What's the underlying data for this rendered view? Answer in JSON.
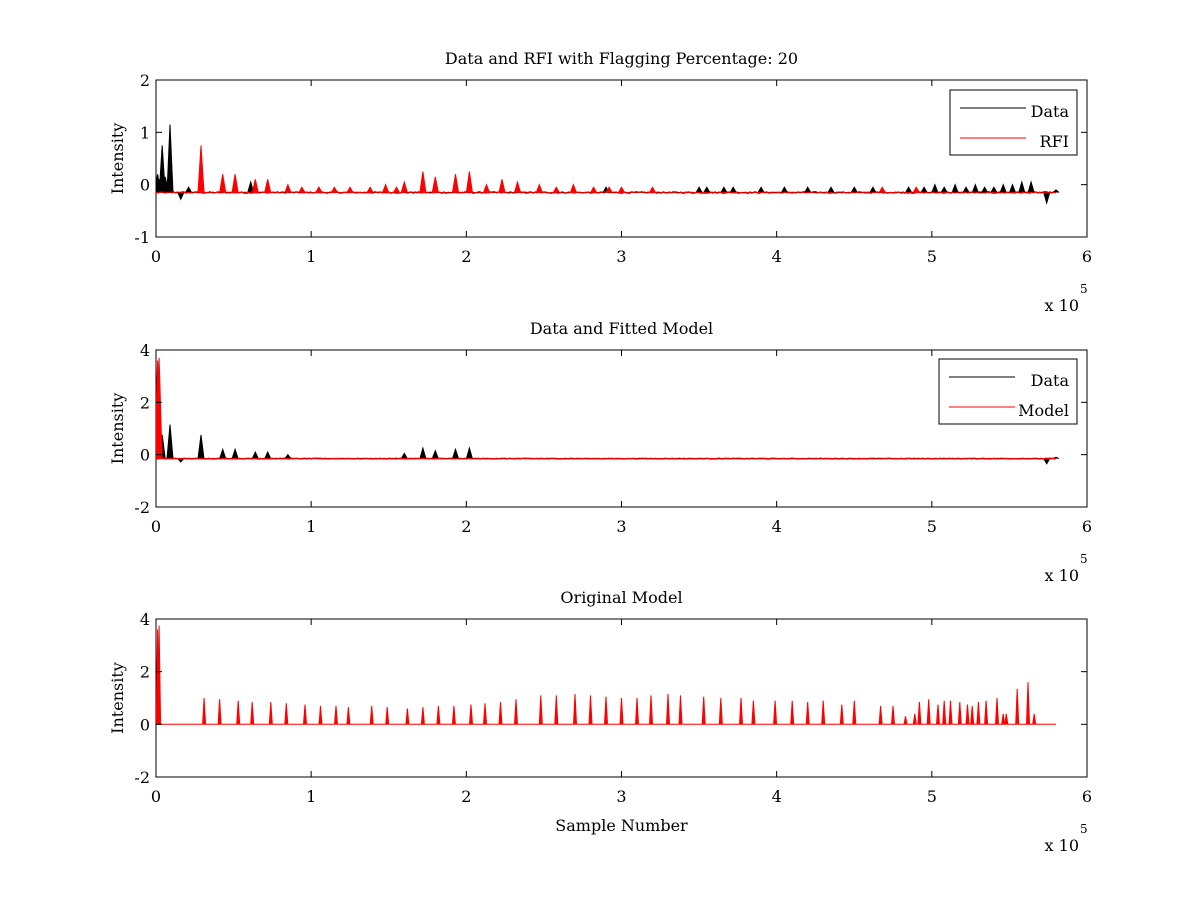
{
  "chart_data": [
    {
      "type": "line",
      "title": "Data and RFI with Flagging Percentage: 20",
      "xlabel": "",
      "ylabel": "Intensity",
      "xlim": [
        0,
        6
      ],
      "ylim": [
        -1,
        2
      ],
      "x_ticks": [
        "0",
        "1",
        "2",
        "3",
        "4",
        "5",
        "6"
      ],
      "y_ticks": [
        "-1",
        "0",
        "1",
        "2"
      ],
      "x_exponent_label": "x 10",
      "x_exponent": "5",
      "legend": {
        "position": "top-right",
        "entries": [
          {
            "name": "Data",
            "color": "#000000"
          },
          {
            "name": "RFI",
            "color": "#ff0000"
          }
        ]
      },
      "series": [
        {
          "name": "Data",
          "color": "#000000",
          "baseline": -0.15,
          "features": [
            {
              "x": 0.01,
              "y": 0.2
            },
            {
              "x": 0.02,
              "y": 0.1
            },
            {
              "x": 0.04,
              "y": 0.75
            },
            {
              "x": 0.06,
              "y": 0.15
            },
            {
              "x": 0.09,
              "y": 1.15
            },
            {
              "x": 0.12,
              "y": -0.15
            },
            {
              "x": 0.16,
              "y": -0.28
            },
            {
              "x": 0.21,
              "y": -0.05
            },
            {
              "x": 0.29,
              "y": 0.45
            },
            {
              "x": 0.43,
              "y": 0.1
            },
            {
              "x": 0.61,
              "y": 0.05
            },
            {
              "x": 1.05,
              "y": -0.05
            },
            {
              "x": 2.9,
              "y": -0.05
            },
            {
              "x": 3.5,
              "y": -0.05
            },
            {
              "x": 3.55,
              "y": -0.05
            },
            {
              "x": 3.66,
              "y": -0.05
            },
            {
              "x": 3.72,
              "y": -0.05
            },
            {
              "x": 3.9,
              "y": -0.05
            },
            {
              "x": 4.05,
              "y": -0.05
            },
            {
              "x": 4.2,
              "y": -0.05
            },
            {
              "x": 4.35,
              "y": -0.05
            },
            {
              "x": 4.5,
              "y": -0.05
            },
            {
              "x": 4.62,
              "y": -0.05
            },
            {
              "x": 4.85,
              "y": -0.05
            },
            {
              "x": 4.95,
              "y": -0.05
            },
            {
              "x": 5.02,
              "y": 0.0
            },
            {
              "x": 5.08,
              "y": -0.05
            },
            {
              "x": 5.15,
              "y": 0.0
            },
            {
              "x": 5.22,
              "y": -0.05
            },
            {
              "x": 5.28,
              "y": 0.0
            },
            {
              "x": 5.34,
              "y": -0.05
            },
            {
              "x": 5.4,
              "y": -0.05
            },
            {
              "x": 5.46,
              "y": 0.0
            },
            {
              "x": 5.52,
              "y": 0.0
            },
            {
              "x": 5.58,
              "y": 0.05
            },
            {
              "x": 5.64,
              "y": 0.05
            },
            {
              "x": 5.74,
              "y": -0.35
            },
            {
              "x": 5.8,
              "y": -0.1
            }
          ]
        },
        {
          "name": "RFI",
          "color": "#ff0000",
          "baseline": -0.15,
          "features": [
            {
              "x": 0.29,
              "y": 0.75
            },
            {
              "x": 0.43,
              "y": 0.2
            },
            {
              "x": 0.51,
              "y": 0.2
            },
            {
              "x": 0.64,
              "y": 0.1
            },
            {
              "x": 0.72,
              "y": 0.1
            },
            {
              "x": 0.85,
              "y": 0.0
            },
            {
              "x": 0.94,
              "y": -0.05
            },
            {
              "x": 1.05,
              "y": -0.05
            },
            {
              "x": 1.15,
              "y": -0.05
            },
            {
              "x": 1.25,
              "y": -0.05
            },
            {
              "x": 1.38,
              "y": -0.05
            },
            {
              "x": 1.48,
              "y": 0.0
            },
            {
              "x": 1.55,
              "y": -0.05
            },
            {
              "x": 1.6,
              "y": 0.05
            },
            {
              "x": 1.72,
              "y": 0.25
            },
            {
              "x": 1.8,
              "y": 0.15
            },
            {
              "x": 1.93,
              "y": 0.2
            },
            {
              "x": 2.02,
              "y": 0.25
            },
            {
              "x": 2.13,
              "y": 0.0
            },
            {
              "x": 2.23,
              "y": 0.1
            },
            {
              "x": 2.33,
              "y": 0.05
            },
            {
              "x": 2.47,
              "y": 0.0
            },
            {
              "x": 2.58,
              "y": -0.05
            },
            {
              "x": 2.69,
              "y": 0.0
            },
            {
              "x": 2.82,
              "y": -0.05
            },
            {
              "x": 2.92,
              "y": -0.05
            },
            {
              "x": 3.0,
              "y": -0.05
            },
            {
              "x": 3.2,
              "y": -0.05
            },
            {
              "x": 4.68,
              "y": -0.05
            },
            {
              "x": 4.9,
              "y": -0.05
            }
          ]
        }
      ]
    },
    {
      "type": "line",
      "title": "Data and Fitted Model",
      "xlabel": "",
      "ylabel": "Intensity",
      "xlim": [
        0,
        6
      ],
      "ylim": [
        -2,
        4
      ],
      "x_ticks": [
        "0",
        "1",
        "2",
        "3",
        "4",
        "5",
        "6"
      ],
      "y_ticks": [
        "-2",
        "0",
        "2",
        "4"
      ],
      "x_exponent_label": "x 10",
      "x_exponent": "5",
      "legend": {
        "position": "top-right",
        "entries": [
          {
            "name": "Data",
            "color": "#000000"
          },
          {
            "name": "Model",
            "color": "#ff0000"
          }
        ]
      },
      "series": [
        {
          "name": "Data",
          "color": "#000000",
          "baseline": -0.15,
          "features": [
            {
              "x": 0.04,
              "y": 0.75
            },
            {
              "x": 0.09,
              "y": 1.15
            },
            {
              "x": 0.16,
              "y": -0.28
            },
            {
              "x": 0.29,
              "y": 0.75
            },
            {
              "x": 0.43,
              "y": 0.2
            },
            {
              "x": 0.51,
              "y": 0.2
            },
            {
              "x": 0.64,
              "y": 0.1
            },
            {
              "x": 0.72,
              "y": 0.1
            },
            {
              "x": 0.85,
              "y": 0.0
            },
            {
              "x": 1.6,
              "y": 0.05
            },
            {
              "x": 1.72,
              "y": 0.25
            },
            {
              "x": 1.8,
              "y": 0.15
            },
            {
              "x": 1.93,
              "y": 0.2
            },
            {
              "x": 2.02,
              "y": 0.25
            },
            {
              "x": 5.74,
              "y": -0.35
            },
            {
              "x": 5.8,
              "y": -0.1
            }
          ]
        },
        {
          "name": "Model",
          "color": "#ff0000",
          "baseline": -0.15,
          "features": [
            {
              "x": 0.01,
              "y": 3.6
            },
            {
              "x": 0.02,
              "y": 3.7
            }
          ]
        }
      ]
    },
    {
      "type": "line",
      "title": "Original Model",
      "xlabel": "Sample Number",
      "ylabel": "Intensity",
      "xlim": [
        0,
        6
      ],
      "ylim": [
        -2,
        4
      ],
      "x_ticks": [
        "0",
        "1",
        "2",
        "3",
        "4",
        "5",
        "6"
      ],
      "y_ticks": [
        "-2",
        "0",
        "2",
        "4"
      ],
      "x_exponent_label": "x 10",
      "x_exponent": "5",
      "series": [
        {
          "name": "",
          "color": "#ff0000",
          "baseline": 0,
          "x_end": 5.8,
          "features": [
            {
              "x": 0.01,
              "y": 3.6
            },
            {
              "x": 0.02,
              "y": 3.75
            },
            {
              "x": 0.31,
              "y": 1.0
            },
            {
              "x": 0.41,
              "y": 0.95
            },
            {
              "x": 0.53,
              "y": 0.9
            },
            {
              "x": 0.62,
              "y": 0.85
            },
            {
              "x": 0.74,
              "y": 0.85
            },
            {
              "x": 0.84,
              "y": 0.8
            },
            {
              "x": 0.96,
              "y": 0.75
            },
            {
              "x": 1.06,
              "y": 0.7
            },
            {
              "x": 1.16,
              "y": 0.7
            },
            {
              "x": 1.24,
              "y": 0.65
            },
            {
              "x": 1.39,
              "y": 0.7
            },
            {
              "x": 1.49,
              "y": 0.65
            },
            {
              "x": 1.62,
              "y": 0.6
            },
            {
              "x": 1.72,
              "y": 0.65
            },
            {
              "x": 1.82,
              "y": 0.7
            },
            {
              "x": 1.92,
              "y": 0.7
            },
            {
              "x": 2.03,
              "y": 0.75
            },
            {
              "x": 2.12,
              "y": 0.8
            },
            {
              "x": 2.22,
              "y": 0.85
            },
            {
              "x": 2.32,
              "y": 0.95
            },
            {
              "x": 2.48,
              "y": 1.1
            },
            {
              "x": 2.58,
              "y": 1.1
            },
            {
              "x": 2.7,
              "y": 1.15
            },
            {
              "x": 2.8,
              "y": 1.1
            },
            {
              "x": 2.9,
              "y": 1.05
            },
            {
              "x": 3.0,
              "y": 1.0
            },
            {
              "x": 3.1,
              "y": 1.0
            },
            {
              "x": 3.19,
              "y": 1.1
            },
            {
              "x": 3.3,
              "y": 1.15
            },
            {
              "x": 3.38,
              "y": 1.1
            },
            {
              "x": 3.53,
              "y": 1.05
            },
            {
              "x": 3.64,
              "y": 1.0
            },
            {
              "x": 3.77,
              "y": 1.0
            },
            {
              "x": 3.85,
              "y": 0.9
            },
            {
              "x": 3.99,
              "y": 0.9
            },
            {
              "x": 4.1,
              "y": 0.9
            },
            {
              "x": 4.2,
              "y": 0.85
            },
            {
              "x": 4.3,
              "y": 0.9
            },
            {
              "x": 4.42,
              "y": 0.75
            },
            {
              "x": 4.5,
              "y": 0.9
            },
            {
              "x": 4.67,
              "y": 0.7
            },
            {
              "x": 4.75,
              "y": 0.7
            },
            {
              "x": 4.83,
              "y": 0.3
            },
            {
              "x": 4.89,
              "y": 0.4
            },
            {
              "x": 4.92,
              "y": 0.85
            },
            {
              "x": 4.98,
              "y": 0.95
            },
            {
              "x": 5.04,
              "y": 0.75
            },
            {
              "x": 5.08,
              "y": 0.9
            },
            {
              "x": 5.12,
              "y": 0.9
            },
            {
              "x": 5.18,
              "y": 0.85
            },
            {
              "x": 5.23,
              "y": 0.75
            },
            {
              "x": 5.26,
              "y": 0.7
            },
            {
              "x": 5.3,
              "y": 0.85
            },
            {
              "x": 5.35,
              "y": 0.9
            },
            {
              "x": 5.42,
              "y": 1.0
            },
            {
              "x": 5.46,
              "y": 0.4
            },
            {
              "x": 5.48,
              "y": 0.4
            },
            {
              "x": 5.55,
              "y": 1.35
            },
            {
              "x": 5.62,
              "y": 1.6
            },
            {
              "x": 5.66,
              "y": 0.4
            }
          ]
        }
      ]
    }
  ]
}
